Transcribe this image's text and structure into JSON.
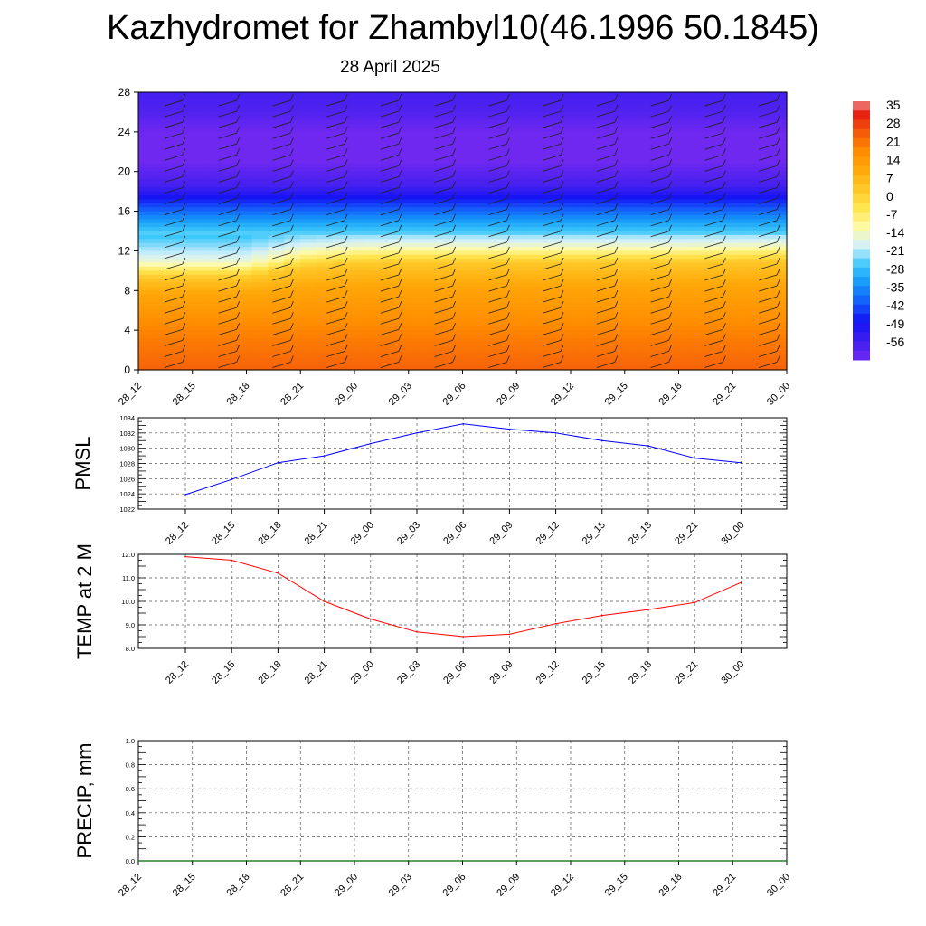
{
  "header": {
    "title": "Kazhydromet for Zhambyl10(46.1996 50.1845)",
    "subtitle": "28 April 2025"
  },
  "colorbar": {
    "labels": [
      "35",
      "28",
      "21",
      "14",
      "7",
      "0",
      "-7",
      "-14",
      "-21",
      "-28",
      "-35",
      "-42",
      "-49",
      "-56"
    ]
  },
  "chart_data": [
    {
      "type": "heatmap",
      "name": "cross-section",
      "x_categories": [
        "28_12",
        "28_15",
        "28_18",
        "28_21",
        "29_00",
        "29_03",
        "29_06",
        "29_09",
        "29_12",
        "29_15",
        "29_18",
        "29_21",
        "30_00"
      ],
      "ylim": [
        0,
        28
      ],
      "yticks": [
        "0",
        "4",
        "8",
        "12",
        "16",
        "20",
        "24",
        "28"
      ],
      "colorbar_range": [
        -56,
        35
      ],
      "temperature_profile_by_height": [
        {
          "height": 0,
          "value": 27
        },
        {
          "height": 4,
          "value": 22
        },
        {
          "height": 8,
          "value": 15
        },
        {
          "height": 10,
          "value": 7
        },
        {
          "height": 11.5,
          "value": -7
        },
        {
          "height": 12.5,
          "value": -14
        },
        {
          "height": 14,
          "value": -21
        },
        {
          "height": 15.5,
          "value": -30
        },
        {
          "height": 17,
          "value": -40
        },
        {
          "height": 18.5,
          "value": -50
        },
        {
          "height": 21,
          "value": -56
        },
        {
          "height": 24,
          "value": -56
        },
        {
          "height": 26,
          "value": -52
        },
        {
          "height": 28,
          "value": -50
        }
      ],
      "freezing_level_by_time": [
        10.0,
        10.0,
        10.0,
        11.3,
        11.7,
        11.8,
        11.8,
        11.8,
        11.8,
        11.8,
        11.8,
        11.9,
        12.0
      ],
      "wind_barbs": "present"
    },
    {
      "type": "line",
      "name": "pmsl",
      "ylabel": "PMSL",
      "x": [
        "28_12",
        "28_15",
        "28_18",
        "28_21",
        "29_00",
        "29_03",
        "29_06",
        "29_09",
        "29_12",
        "29_15",
        "29_18",
        "29_21",
        "30_00"
      ],
      "values": [
        1023.9,
        1025.9,
        1028.1,
        1029.0,
        1030.6,
        1032.0,
        1033.2,
        1032.5,
        1032.0,
        1031.0,
        1030.3,
        1028.7,
        1028.1
      ],
      "ylim": [
        1022,
        1034
      ],
      "yticks": [
        "1022",
        "1024",
        "1026",
        "1028",
        "1030",
        "1032",
        "1034"
      ],
      "color": "#0000ff",
      "grid": true
    },
    {
      "type": "line",
      "name": "temp2m",
      "ylabel": "TEMP at 2 M",
      "x": [
        "28_12",
        "28_15",
        "28_18",
        "28_21",
        "29_00",
        "29_03",
        "29_06",
        "29_09",
        "29_12",
        "29_15",
        "29_18",
        "29_21",
        "30_00"
      ],
      "values": [
        11.9,
        11.75,
        11.2,
        10.0,
        9.25,
        8.7,
        8.5,
        8.6,
        9.05,
        9.4,
        9.65,
        9.95,
        10.8
      ],
      "ylim": [
        8.0,
        12.0
      ],
      "yticks": [
        "8.0",
        "9.0",
        "10.0",
        "11.0",
        "12.0"
      ],
      "color": "#ff0000",
      "grid": true
    },
    {
      "type": "line",
      "name": "precip",
      "ylabel": "PRECIP, mm",
      "x": [
        "28_12",
        "28_15",
        "28_18",
        "28_21",
        "29_00",
        "29_03",
        "29_06",
        "29_09",
        "29_12",
        "29_15",
        "29_18",
        "29_21",
        "30_00"
      ],
      "values": [
        0,
        0,
        0,
        0,
        0,
        0,
        0,
        0,
        0,
        0,
        0,
        0,
        0
      ],
      "ylim": [
        0.0,
        1.0
      ],
      "yticks": [
        "0.0",
        "0.2",
        "0.4",
        "0.6",
        "0.8",
        "1.0"
      ],
      "color": "#006400",
      "grid": true
    }
  ]
}
